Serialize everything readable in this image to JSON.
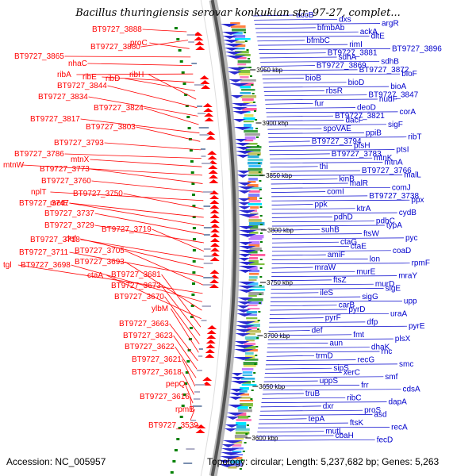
{
  "title": "Bacillus thuringiensis serovar konkukian str. 97-27, complet...",
  "footer": {
    "accession": "Accession: NC_005957",
    "summary": "Topology: circular; Length: 5,237,682 bp; Genes: 5,263"
  },
  "coordinates": [
    "3950 kbp",
    "3900 kbp",
    "3850 kbp",
    "3800 kbp",
    "3750 kbp",
    "3700 kbp",
    "3650 kbp",
    "3600 kbp"
  ],
  "left_labels": [
    "BT9727_3888",
    "BT9727_3880",
    "proC",
    "BT9727_3865",
    "nhaC",
    "ribA",
    "ribE",
    "ribD",
    "ribH",
    "BT9727_3844",
    "BT9727_3834",
    "BT9727_3824",
    "BT9727_3817",
    "BT9727_3803",
    "BT9727_3793",
    "BT9727_3786",
    "mtnX",
    "mtnW",
    "BT9727_3773",
    "BT9727_3760",
    "nplT",
    "BT9727_3750",
    "BT9727_3747",
    "metE",
    "BT9727_3737",
    "BT9727_3729",
    "BT9727_3719",
    "BT9727_3718",
    "def",
    "BT9727_3711",
    "BT9727_3705",
    "tgl",
    "BT9727_3698",
    "BT9727_3693",
    "ctaA",
    "BT9727_3681",
    "BT9727_3673",
    "BT9727_3670",
    "ylbM",
    "BT9727_3663",
    "BT9727_3623",
    "BT9727_3622",
    "BT9727_3621",
    "BT9727_3618",
    "pepQ",
    "BT9727_3616",
    "rpmB",
    "BT9727_3539"
  ],
  "right_labels": [
    "accB",
    "dxs",
    "argR",
    "bfmbAb",
    "ackA",
    "dltE",
    "bfmbC",
    "rimI",
    "BT9727_3896",
    "BT9727_3881",
    "sdhA",
    "sdhB",
    "BT9727_3869",
    "BT9727_3872",
    "bioF",
    "bioB",
    "bioD",
    "bioA",
    "rbsR",
    "BT9727_3847",
    "nudF",
    "fur",
    "deoD",
    "corA",
    "BT9727_3821",
    "dacF",
    "sigF",
    "spoVAE",
    "ppiB",
    "ribT",
    "BT9727_3794",
    "ptsH",
    "ptsI",
    "BT9727_3783",
    "mtnK",
    "mtnA",
    "thi",
    "BT9727_3766",
    "malL",
    "kinB",
    "malR",
    "comJ",
    "comI",
    "BT9727_3738",
    "ppx",
    "ppk",
    "ktrA",
    "cydB",
    "pdhD",
    "pdhC",
    "typA",
    "suhB",
    "ftsW",
    "pyc",
    "ctaG",
    "ctaE",
    "coaD",
    "amiF",
    "lon",
    "rpmF",
    "mraW",
    "murE",
    "mraY",
    "ftsZ",
    "murD",
    "sigE",
    "ileS",
    "sigG",
    "upp",
    "carB",
    "pyrD",
    "uraA",
    "pyrF",
    "dfp",
    "pyrE",
    "def",
    "fmt",
    "plsX",
    "aun",
    "dhaK",
    "rnc",
    "trmD",
    "recG",
    "smc",
    "sipS",
    "xerC",
    "smf",
    "uppS",
    "frr",
    "cdsA",
    "truB",
    "ribC",
    "dapA",
    "dxr",
    "proS",
    "asd",
    "tepA",
    "ftsK",
    "recA",
    "mutL",
    "cbaH",
    "fecD"
  ],
  "colors": {
    "left_label": "#ff0000",
    "right_label": "#0000cc",
    "backbone": "#555555",
    "dot": "#008000"
  }
}
